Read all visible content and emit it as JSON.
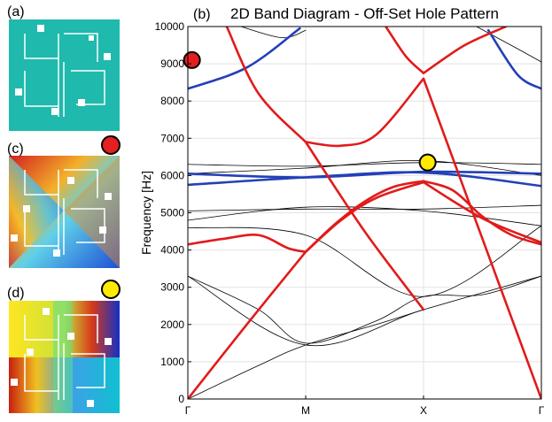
{
  "figure": {
    "panel_labels": {
      "a": "(a)",
      "b": "(b)",
      "c": "(c)",
      "d": "(d)"
    },
    "colors": {
      "teal": "#1fb9ad",
      "red": "#e41f1f",
      "yellow": "#ffeb00",
      "blue_band": "#2340b8",
      "red_band": "#e11b1b",
      "black_band": "#000000"
    },
    "markers": [
      {
        "name": "red-marker",
        "color": "#e41f1f",
        "x_path": 0.02,
        "freq": 9100
      },
      {
        "name": "yellow-marker",
        "color": "#ffeb00",
        "x_path": 2.02,
        "freq": 6350
      }
    ]
  },
  "chart_data": {
    "type": "line",
    "title": "2D Band Diagram - Off-Set Hole Pattern",
    "xlabel": "",
    "ylabel": "Frequency [Hz]",
    "xlim": [
      0,
      3
    ],
    "ylim": [
      0,
      10000
    ],
    "x_ticks": [
      0,
      1,
      2,
      3
    ],
    "x_tick_labels": [
      "Γ",
      "M",
      "X",
      "Γ"
    ],
    "y_ticks": [
      0,
      1000,
      2000,
      3000,
      4000,
      5000,
      6000,
      7000,
      8000,
      9000,
      10000
    ],
    "y_tick_labels": [
      "0",
      "1000",
      "2000",
      "3000",
      "4000",
      "5000",
      "6000",
      "7000",
      "8000",
      "9000",
      "10000"
    ],
    "grid": true,
    "series": [
      {
        "name": "red-1",
        "color": "red",
        "x": [
          0,
          0.5,
          1
        ],
        "y": [
          0,
          2000,
          3950
        ]
      },
      {
        "name": "red-2",
        "color": "red",
        "x": [
          1,
          1.25,
          1.5,
          1.75,
          2
        ],
        "y": [
          3950,
          4700,
          5300,
          5700,
          5850
        ]
      },
      {
        "name": "red-3",
        "color": "red",
        "x": [
          2,
          2.25,
          2.5,
          2.75,
          3
        ],
        "y": [
          5850,
          5600,
          4900,
          4400,
          4150
        ]
      },
      {
        "name": "red-4",
        "color": "red",
        "x": [
          0,
          0.3,
          0.6,
          0.85,
          1
        ],
        "y": [
          4150,
          4300,
          4400,
          4050,
          3950
        ]
      },
      {
        "name": "red-5",
        "color": "red",
        "x": [
          1,
          1.3,
          1.6,
          2
        ],
        "y": [
          3950,
          4800,
          5400,
          5820
        ]
      },
      {
        "name": "red-6",
        "color": "red",
        "x": [
          2,
          2.5,
          3
        ],
        "y": [
          5820,
          4850,
          4200
        ]
      },
      {
        "name": "red-7",
        "color": "red",
        "x": [
          0.33,
          0.6,
          1
        ],
        "y": [
          10000,
          8200,
          6900
        ]
      },
      {
        "name": "red-8",
        "color": "red",
        "x": [
          1,
          1.3,
          1.6,
          2
        ],
        "y": [
          6900,
          6800,
          7100,
          8600
        ]
      },
      {
        "name": "red-9",
        "color": "red",
        "x": [
          1,
          1.5,
          2
        ],
        "y": [
          6900,
          4500,
          2400
        ]
      },
      {
        "name": "red-10",
        "color": "red",
        "x": [
          2,
          2.5,
          3
        ],
        "y": [
          8600,
          4300,
          0
        ]
      },
      {
        "name": "red-11",
        "color": "red",
        "x": [
          1.68,
          1.85,
          2
        ],
        "y": [
          10000,
          9200,
          8750
        ]
      },
      {
        "name": "red-12",
        "color": "red",
        "x": [
          2,
          2.35,
          2.7
        ],
        "y": [
          8750,
          9500,
          10000
        ]
      },
      {
        "name": "blue-1",
        "color": "blue",
        "x": [
          0,
          0.5,
          0.95
        ],
        "y": [
          8330,
          8900,
          9950
        ]
      },
      {
        "name": "blue-2",
        "color": "blue",
        "x": [
          2.55,
          2.8,
          3
        ],
        "y": [
          9900,
          8700,
          8330
        ]
      },
      {
        "name": "blue-3",
        "color": "blue",
        "x": [
          0,
          1,
          2,
          3
        ],
        "y": [
          6050,
          5950,
          6100,
          6050
        ]
      },
      {
        "name": "blue-4",
        "color": "blue",
        "x": [
          0,
          1,
          2,
          3
        ],
        "y": [
          5750,
          5950,
          6080,
          5720
        ]
      },
      {
        "name": "black-1",
        "color": "black",
        "x": [
          0,
          1,
          2,
          3
        ],
        "y": [
          3300,
          1450,
          2400,
          3300
        ]
      },
      {
        "name": "black-2",
        "color": "black",
        "x": [
          0,
          0.6,
          1,
          1.6,
          2
        ],
        "y": [
          0,
          900,
          1450,
          2000,
          2400
        ]
      },
      {
        "name": "black-3",
        "color": "black",
        "x": [
          0,
          0.6,
          1,
          1.6,
          2,
          2.5,
          3
        ],
        "y": [
          3300,
          2400,
          1500,
          2100,
          2750,
          2800,
          3300
        ]
      },
      {
        "name": "black-4",
        "color": "black",
        "x": [
          0,
          1,
          2,
          3
        ],
        "y": [
          4600,
          4400,
          2750,
          4650
        ]
      },
      {
        "name": "black-5",
        "color": "black",
        "x": [
          0,
          1,
          2,
          3
        ],
        "y": [
          4800,
          5150,
          5050,
          4650
        ]
      },
      {
        "name": "black-6",
        "color": "black",
        "x": [
          0,
          1,
          2,
          3
        ],
        "y": [
          5050,
          5100,
          5100,
          5200
        ]
      },
      {
        "name": "black-7",
        "color": "black",
        "x": [
          0,
          1,
          2,
          3
        ],
        "y": [
          6300,
          6250,
          6350,
          6300
        ]
      },
      {
        "name": "black-8",
        "color": "black",
        "x": [
          0,
          1,
          2,
          3
        ],
        "y": [
          6050,
          6200,
          6400,
          6000
        ]
      },
      {
        "name": "black-9",
        "color": "black",
        "x": [
          0.45,
          0.8,
          1
        ],
        "y": [
          10000,
          9700,
          9900
        ]
      },
      {
        "name": "black-10",
        "color": "black",
        "x": [
          2.45,
          2.8,
          3
        ],
        "y": [
          10000,
          9400,
          9050
        ]
      }
    ]
  }
}
